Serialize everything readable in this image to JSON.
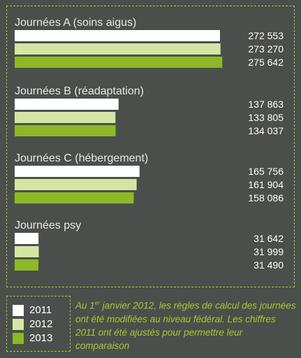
{
  "colors": {
    "background": "#4b4f4c",
    "accent": "#a5c82e",
    "y2011": "#ffffff",
    "y2012": "#d5e6a4",
    "y2013": "#8db827"
  },
  "chart_data": {
    "type": "bar",
    "orientation": "horizontal",
    "series_names": [
      "2011",
      "2012",
      "2013"
    ],
    "groups": [
      {
        "name": "Journées A (soins aigus)",
        "values": [
          272553,
          273270,
          275642
        ],
        "labels": [
          "272 553",
          "273 270",
          "275 642"
        ]
      },
      {
        "name": "Journées B (réadaptation)",
        "values": [
          137863,
          133805,
          134037
        ],
        "labels": [
          "137 863",
          "133 805",
          "134 037"
        ]
      },
      {
        "name": "Journées C (hébergement)",
        "values": [
          165756,
          161904,
          158086
        ],
        "labels": [
          "165 756",
          "161 904",
          "158 086"
        ]
      },
      {
        "name": "Journées psy",
        "values": [
          31642,
          31999,
          31490
        ],
        "labels": [
          "31 642",
          "31 999",
          "31 490"
        ]
      }
    ],
    "xlim": [
      0,
      280000
    ],
    "grid": false,
    "legend_position": "bottom-left"
  },
  "legend": [
    {
      "label": "2011"
    },
    {
      "label": "2012"
    },
    {
      "label": "2013"
    }
  ],
  "footnote": {
    "part1": "Au 1",
    "superscript": "er",
    "part2": " janvier 2012, les règles de calcul des journées ont été modifiées au niveau fédéral. Les chiffres 2011 ont été ajustés pour permettre leur comparaison"
  }
}
